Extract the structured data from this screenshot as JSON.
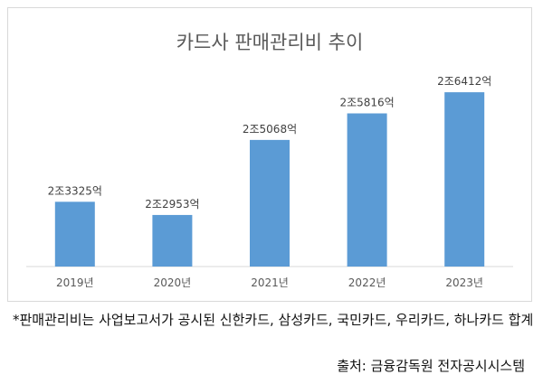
{
  "chart_data": {
    "type": "bar",
    "title": "카드사 판매관리비 추이",
    "categories": [
      "2019년",
      "2020년",
      "2021년",
      "2022년",
      "2023년"
    ],
    "values": [
      23325,
      22953,
      25068,
      25816,
      26412
    ],
    "value_unit": "억 원",
    "data_labels": [
      "2조3325억",
      "2조2953억",
      "2조5068억",
      "2조5816억",
      "2조6412억"
    ],
    "ylim": [
      21500,
      27000
    ],
    "grid": false,
    "legend": "none",
    "bar_color": "#5b9bd5"
  },
  "footnote": "*판매관리비는 사업보고서가 공시된 신한카드, 삼성카드, 국민카드, 우리카드, 하나카드 합계",
  "source": "출처: 금융감독원 전자공시시스템"
}
